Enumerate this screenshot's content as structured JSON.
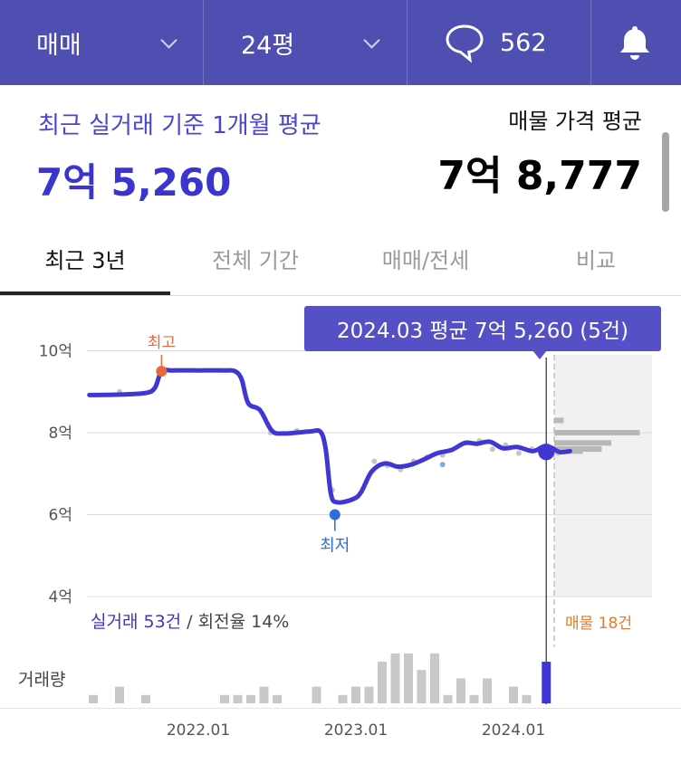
{
  "topbar": {
    "deal_type": "매매",
    "area": "24평",
    "comment_count": "562"
  },
  "summary": {
    "left_label": "최근 실거래 기준 1개월 평균",
    "left_value": "7억 5,260",
    "right_label": "매물 가격 평균",
    "right_value": "7억 8,777"
  },
  "tabs": [
    {
      "label": "최근 3년",
      "active": true
    },
    {
      "label": "전체 기간",
      "active": false
    },
    {
      "label": "매매/전세",
      "active": false
    },
    {
      "label": "비교",
      "active": false
    }
  ],
  "tooltip": "2024.03 평균 7억 5,260 (5건)",
  "chart_labels": {
    "high": "최고",
    "low": "최저"
  },
  "stats": {
    "trades": "실거래 53건",
    "separator": " / ",
    "turnover": "회전율 14%",
    "listings": "매물 18건",
    "volume_label": "거래량"
  },
  "colors": {
    "topbar": "#4e4fb0",
    "accent": "#3b34cf",
    "high_marker": "#e8683a",
    "low_marker": "#2d6ed8",
    "listing": "#e57a2b"
  },
  "chart_data": {
    "type": "line",
    "ylim": [
      4,
      10.5
    ],
    "y_ticks": [
      "10억",
      "8억",
      "6억",
      "4억"
    ],
    "y_tick_values": [
      10,
      8,
      6,
      4
    ],
    "x_ticks": [
      "2022.01",
      "2023.01",
      "2024.01"
    ],
    "x_tick_months": [
      0,
      12,
      24
    ],
    "xlim_months": [
      -8.5,
      33
    ],
    "series": [
      {
        "name": "실거래 평균",
        "points": [
          [
            -8.3,
            8.92
          ],
          [
            -6,
            8.93
          ],
          [
            -4,
            8.97
          ],
          [
            -3.3,
            9.1
          ],
          [
            -2.8,
            9.5
          ],
          [
            -2,
            9.52
          ],
          [
            0,
            9.52
          ],
          [
            2,
            9.52
          ],
          [
            2.8,
            9.5
          ],
          [
            3.3,
            9.3
          ],
          [
            3.8,
            8.72
          ],
          [
            4.7,
            8.55
          ],
          [
            5.6,
            8.05
          ],
          [
            6.5,
            7.98
          ],
          [
            8.5,
            8.03
          ],
          [
            9.3,
            8.02
          ],
          [
            9.7,
            7.6
          ],
          [
            10.1,
            6.5
          ],
          [
            10.6,
            6.3
          ],
          [
            11.8,
            6.38
          ],
          [
            12.4,
            6.55
          ],
          [
            13.2,
            7.05
          ],
          [
            14.2,
            7.25
          ],
          [
            15.2,
            7.17
          ],
          [
            16.2,
            7.22
          ],
          [
            17.2,
            7.35
          ],
          [
            18.2,
            7.5
          ],
          [
            19.3,
            7.58
          ],
          [
            20.3,
            7.75
          ],
          [
            21.2,
            7.73
          ],
          [
            22.2,
            7.78
          ],
          [
            23.2,
            7.62
          ],
          [
            24.3,
            7.65
          ],
          [
            25.5,
            7.55
          ],
          [
            26.5,
            7.68
          ],
          [
            27.5,
            7.53
          ],
          [
            28.3,
            7.55
          ]
        ]
      }
    ],
    "trades": [
      [
        -6,
        9.0
      ],
      [
        5.5,
        8.0
      ],
      [
        7.5,
        8.05
      ],
      [
        10.2,
        6.6
      ],
      [
        13.4,
        7.3
      ],
      [
        14.4,
        7.2
      ],
      [
        15.4,
        7.1
      ],
      [
        16.4,
        7.3
      ],
      [
        17.4,
        7.4
      ],
      [
        18.6,
        7.45
      ],
      [
        20.4,
        7.75
      ],
      [
        21.4,
        7.8
      ],
      [
        22.4,
        7.6
      ],
      [
        23.4,
        7.7
      ],
      [
        24.4,
        7.5
      ],
      [
        25.4,
        7.6
      ],
      [
        26.4,
        7.65
      ],
      [
        27.4,
        7.5
      ]
    ],
    "trades_highlight": [
      [
        18.6,
        7.22
      ]
    ],
    "high": {
      "x": -2.8,
      "y": 9.5
    },
    "low": {
      "x": 10.4,
      "y": 6.0
    },
    "selected": {
      "x": 26.5,
      "y": 7.526
    },
    "volume": {
      "months": [
        -8,
        -6,
        -4,
        2,
        3,
        4,
        5,
        6,
        9,
        11,
        12,
        13,
        14,
        15,
        16,
        17,
        18,
        19,
        20,
        21,
        22,
        24,
        25,
        26.5
      ],
      "values": [
        1,
        2,
        1,
        1,
        1,
        1,
        2,
        1,
        2,
        1,
        2,
        2,
        5,
        6,
        6,
        4,
        6,
        1,
        3,
        1,
        3,
        2,
        1,
        5
      ],
      "highlight_month": 26.5
    },
    "listings_histogram": {
      "price_bins": [
        8.3,
        8.0,
        7.75,
        7.6,
        7.55
      ],
      "counts": [
        1,
        9,
        6,
        5,
        3
      ]
    }
  }
}
